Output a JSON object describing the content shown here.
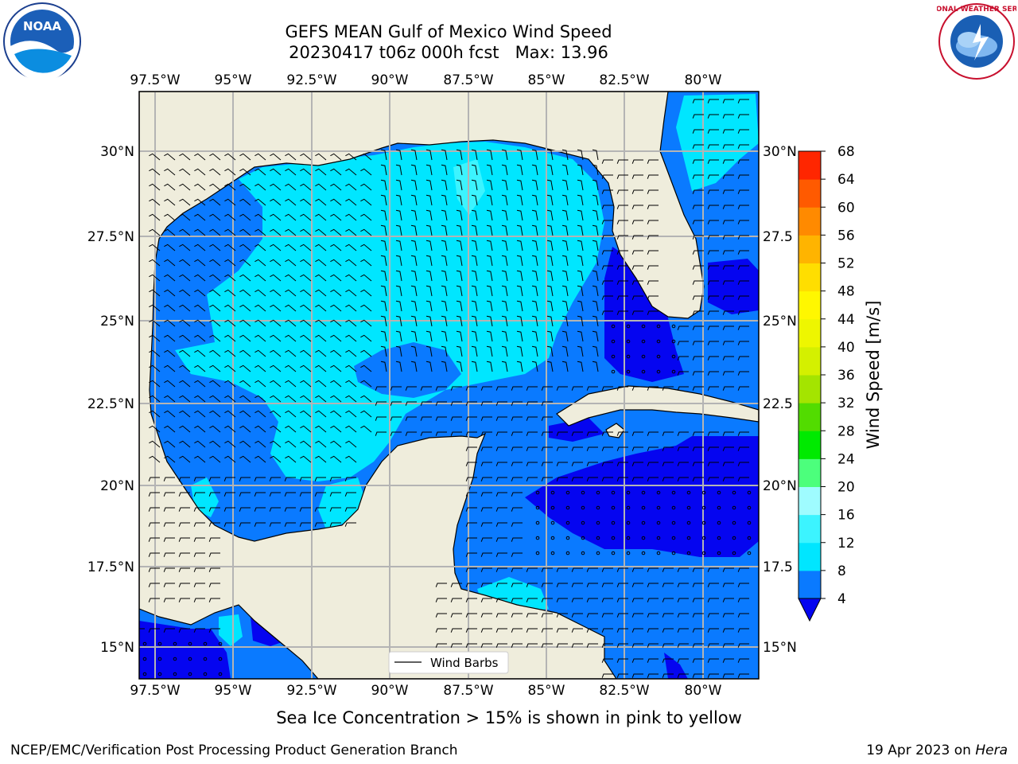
{
  "header": {
    "title_line1": "GEFS MEAN Gulf of Mexico Wind Speed",
    "title_line2": "20230417 t06z 000h fcst   Max: 13.96"
  },
  "map": {
    "lon_labels": [
      "97.5°W",
      "95°W",
      "92.5°W",
      "90°W",
      "87.5°W",
      "85°W",
      "82.5°W",
      "80°W"
    ],
    "lat_labels_left": [
      "30°N",
      "27.5°N",
      "25°N",
      "22.5°N",
      "20°N",
      "17.5°N",
      "15°N"
    ],
    "lat_labels_right": [
      "30°N",
      "27.5",
      "25°N",
      "22.5",
      "20°N",
      "17.5",
      "15°N"
    ],
    "legend_label": "Wind Barbs"
  },
  "colorbar": {
    "label": "Wind Speed [m/s]",
    "ticks": [
      "4",
      "8",
      "12",
      "16",
      "20",
      "24",
      "28",
      "32",
      "36",
      "40",
      "44",
      "48",
      "52",
      "56",
      "60",
      "64",
      "68"
    ],
    "colors": [
      "#0a7aff",
      "#00e6ff",
      "#3cf4ff",
      "#9ffcff",
      "#4cff7c",
      "#00ea00",
      "#52dc00",
      "#a4e400",
      "#d4f000",
      "#eef600",
      "#fff700",
      "#ffde00",
      "#ffb400",
      "#ff8a00",
      "#ff5a00",
      "#ff2600"
    ],
    "extend_color": "#0505f0"
  },
  "colors": {
    "land": "#efeddc",
    "wind_4_8": "#0a7aff",
    "wind_8_12": "#00e6ff",
    "wind_lt4": "#0505f0",
    "grid": "#b4b4b4"
  },
  "caption": "Sea Ice Concentration > 15% is shown in pink to yellow",
  "footer": {
    "left": "NCEP/EMC/Verification Post Processing Product Generation Branch",
    "right_date": "19 Apr 2023 on ",
    "right_host": "Hera"
  },
  "logos": {
    "noaa_text": "NOAA",
    "nws_text": "NATIONAL WEATHER SERVICE"
  }
}
